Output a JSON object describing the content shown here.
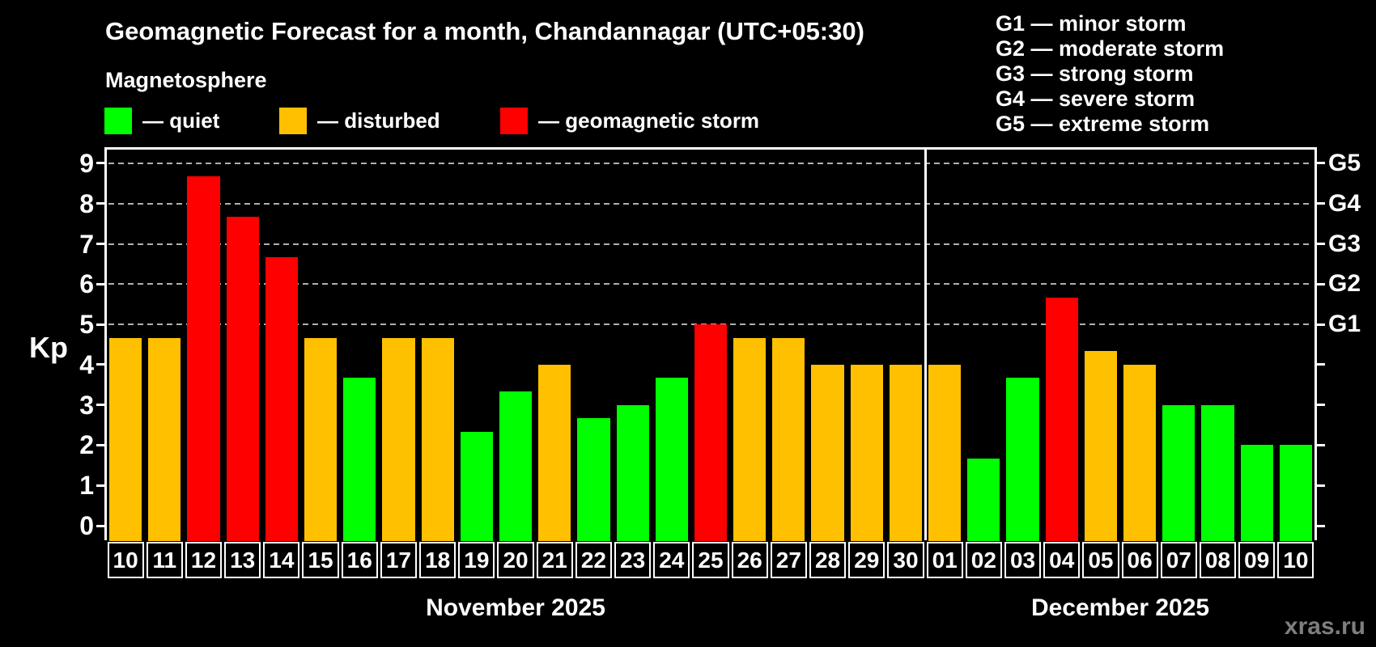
{
  "header": {
    "title": "Geomagnetic Forecast for a month, Chandannagar (UTC+05:30)",
    "subtitle": "Magnetosphere",
    "legend": [
      {
        "key": "quiet",
        "label": "— quiet",
        "color": "#00ff00"
      },
      {
        "key": "disturbed",
        "label": "— disturbed",
        "color": "#ffc000"
      },
      {
        "key": "storm",
        "label": "— geomagnetic storm",
        "color": "#ff0000"
      }
    ],
    "g_scale_legend": [
      "G1 — minor storm",
      "G2 — moderate storm",
      "G3 — strong storm",
      "G4 — severe storm",
      "G5 — extreme storm"
    ]
  },
  "watermark": "xras.ru",
  "colors": {
    "background": "#000000",
    "axis": "#ffffff",
    "gridline": "#b0b0b0",
    "watermark": "#7e7e7e"
  },
  "chart_data": {
    "type": "bar",
    "title": "Geomagnetic Forecast for a month, Chandannagar (UTC+05:30)",
    "ylabel": "Kp",
    "ylim": [
      0,
      9
    ],
    "yticks": [
      0,
      1,
      2,
      3,
      4,
      5,
      6,
      7,
      8,
      9
    ],
    "dashed_gridlines_at": [
      5,
      6,
      7,
      8,
      9
    ],
    "grid": "dashed-horizontal",
    "legend_position": "top-left",
    "right_axis": [
      {
        "label": "G1",
        "kp": 5
      },
      {
        "label": "G2",
        "kp": 6
      },
      {
        "label": "G3",
        "kp": 7
      },
      {
        "label": "G4",
        "kp": 8
      },
      {
        "label": "G5",
        "kp": 9
      }
    ],
    "status_colors": {
      "quiet": "#00ff00",
      "disturbed": "#ffc000",
      "storm": "#ff0000"
    },
    "months": [
      {
        "label": "November 2025",
        "days": [
          {
            "date": "10",
            "kp": 4.67,
            "status": "disturbed"
          },
          {
            "date": "11",
            "kp": 4.67,
            "status": "disturbed"
          },
          {
            "date": "12",
            "kp": 8.67,
            "status": "storm"
          },
          {
            "date": "13",
            "kp": 7.67,
            "status": "storm"
          },
          {
            "date": "14",
            "kp": 6.67,
            "status": "storm"
          },
          {
            "date": "15",
            "kp": 4.67,
            "status": "disturbed"
          },
          {
            "date": "16",
            "kp": 3.67,
            "status": "quiet"
          },
          {
            "date": "17",
            "kp": 4.67,
            "status": "disturbed"
          },
          {
            "date": "18",
            "kp": 4.67,
            "status": "disturbed"
          },
          {
            "date": "19",
            "kp": 2.33,
            "status": "quiet"
          },
          {
            "date": "20",
            "kp": 3.33,
            "status": "quiet"
          },
          {
            "date": "21",
            "kp": 4.0,
            "status": "disturbed"
          },
          {
            "date": "22",
            "kp": 2.67,
            "status": "quiet"
          },
          {
            "date": "23",
            "kp": 3.0,
            "status": "quiet"
          },
          {
            "date": "24",
            "kp": 3.67,
            "status": "quiet"
          },
          {
            "date": "25",
            "kp": 5.0,
            "status": "storm"
          },
          {
            "date": "26",
            "kp": 4.67,
            "status": "disturbed"
          },
          {
            "date": "27",
            "kp": 4.67,
            "status": "disturbed"
          },
          {
            "date": "28",
            "kp": 4.0,
            "status": "disturbed"
          },
          {
            "date": "29",
            "kp": 4.0,
            "status": "disturbed"
          },
          {
            "date": "30",
            "kp": 4.0,
            "status": "disturbed"
          }
        ]
      },
      {
        "label": "December 2025",
        "days": [
          {
            "date": "01",
            "kp": 4.0,
            "status": "disturbed"
          },
          {
            "date": "02",
            "kp": 1.67,
            "status": "quiet"
          },
          {
            "date": "03",
            "kp": 3.67,
            "status": "quiet"
          },
          {
            "date": "04",
            "kp": 5.67,
            "status": "storm"
          },
          {
            "date": "05",
            "kp": 4.33,
            "status": "disturbed"
          },
          {
            "date": "06",
            "kp": 4.0,
            "status": "disturbed"
          },
          {
            "date": "07",
            "kp": 3.0,
            "status": "quiet"
          },
          {
            "date": "08",
            "kp": 3.0,
            "status": "quiet"
          },
          {
            "date": "09",
            "kp": 2.0,
            "status": "quiet"
          },
          {
            "date": "10",
            "kp": 2.0,
            "status": "quiet"
          }
        ]
      }
    ]
  }
}
